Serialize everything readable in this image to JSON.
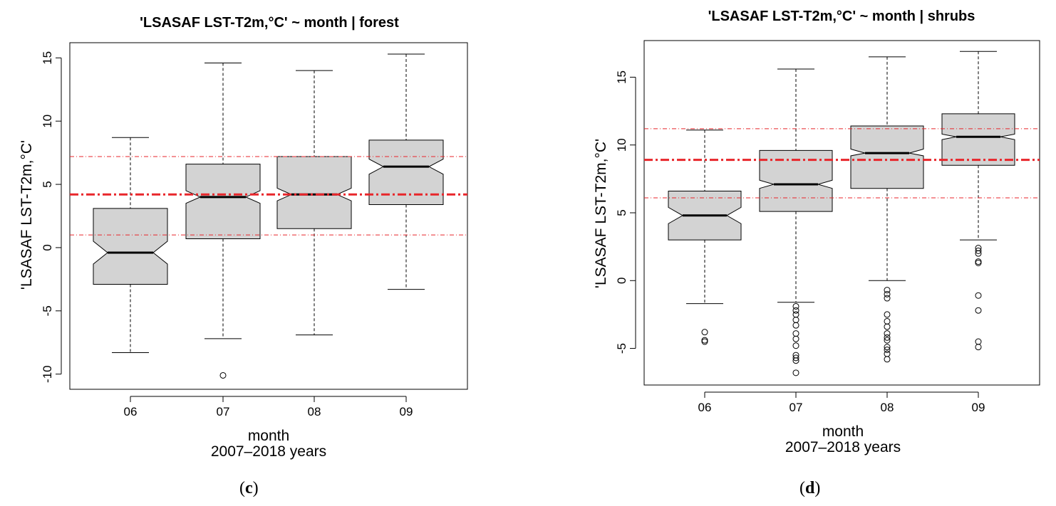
{
  "chart_data": [
    {
      "type": "box",
      "panel_label": "c",
      "title": "'LSASAF LST-T2m,°C' ~ month | forest",
      "xlabel": "month",
      "xlabel2": "2007–2018 years",
      "ylabel": "'LSASAF LST-T2m,°C'",
      "ylim": [
        -11.2,
        16.2
      ],
      "yticks": [
        -10,
        -5,
        0,
        5,
        10,
        15
      ],
      "ytick_labels": [
        "-10",
        "-5",
        "0",
        "5",
        "10",
        "15"
      ],
      "categories": [
        "06",
        "07",
        "08",
        "09"
      ],
      "ref_lines": {
        "mean": 4.2,
        "lower": 1.0,
        "upper": 7.2
      },
      "colors": {
        "box_fill": "#d3d3d3",
        "ref_line": "#e8262b"
      },
      "boxes": [
        {
          "q1": -2.9,
          "median": -0.4,
          "q3": 3.1,
          "notch_low": -1.3,
          "notch_high": 0.5,
          "whisker_low": -8.3,
          "whisker_high": 8.7,
          "outliers": []
        },
        {
          "q1": 0.7,
          "median": 4.0,
          "q3": 6.6,
          "notch_low": 3.5,
          "notch_high": 4.5,
          "whisker_low": -7.2,
          "whisker_high": 14.6,
          "outliers": [
            -10.1
          ]
        },
        {
          "q1": 1.5,
          "median": 4.2,
          "q3": 7.2,
          "notch_low": 3.7,
          "notch_high": 4.7,
          "whisker_low": -6.9,
          "whisker_high": 14.0,
          "outliers": []
        },
        {
          "q1": 3.4,
          "median": 6.4,
          "q3": 8.5,
          "notch_low": 5.8,
          "notch_high": 7.0,
          "whisker_low": -3.3,
          "whisker_high": 15.3,
          "outliers": []
        }
      ]
    },
    {
      "type": "box",
      "panel_label": "d",
      "title": "'LSASAF LST-T2m,°C' ~ month | shrubs",
      "xlabel": "month",
      "xlabel2": "2007–2018 years",
      "ylabel": "'LSASAF LST-T2m,°C'",
      "ylim": [
        -7.7,
        17.7
      ],
      "yticks": [
        -5,
        0,
        5,
        10,
        15
      ],
      "ytick_labels": [
        "-5",
        "0",
        "5",
        "10",
        "15"
      ],
      "categories": [
        "06",
        "07",
        "08",
        "09"
      ],
      "ref_lines": {
        "mean": 8.9,
        "lower": 6.1,
        "upper": 11.2
      },
      "colors": {
        "box_fill": "#d3d3d3",
        "ref_line": "#e8262b"
      },
      "boxes": [
        {
          "q1": 3.0,
          "median": 4.8,
          "q3": 6.6,
          "notch_low": 4.2,
          "notch_high": 5.4,
          "whisker_low": -1.7,
          "whisker_high": 11.1,
          "outliers": [
            -3.8,
            -4.4,
            -4.5
          ]
        },
        {
          "q1": 5.1,
          "median": 7.1,
          "q3": 9.6,
          "notch_low": 6.8,
          "notch_high": 7.4,
          "whisker_low": -1.6,
          "whisker_high": 15.6,
          "outliers": [
            -1.9,
            -2.2,
            -2.5,
            -2.9,
            -3.3,
            -3.9,
            -4.3,
            -4.8,
            -5.5,
            -5.7,
            -5.9,
            -6.8
          ]
        },
        {
          "q1": 6.8,
          "median": 9.4,
          "q3": 11.4,
          "notch_low": 9.2,
          "notch_high": 9.7,
          "whisker_low": 0.0,
          "whisker_high": 16.5,
          "outliers": [
            -0.7,
            -1.0,
            -1.3,
            -2.5,
            -3.0,
            -3.4,
            -3.9,
            -4.2,
            -4.4,
            -4.9,
            -5.1,
            -5.4,
            -5.8
          ]
        },
        {
          "q1": 8.5,
          "median": 10.6,
          "q3": 12.3,
          "notch_low": 10.4,
          "notch_high": 10.8,
          "whisker_low": 3.0,
          "whisker_high": 16.9,
          "outliers": [
            2.4,
            2.2,
            2.0,
            1.4,
            1.3,
            -1.1,
            -2.2,
            -4.5,
            -4.9
          ]
        }
      ]
    }
  ]
}
